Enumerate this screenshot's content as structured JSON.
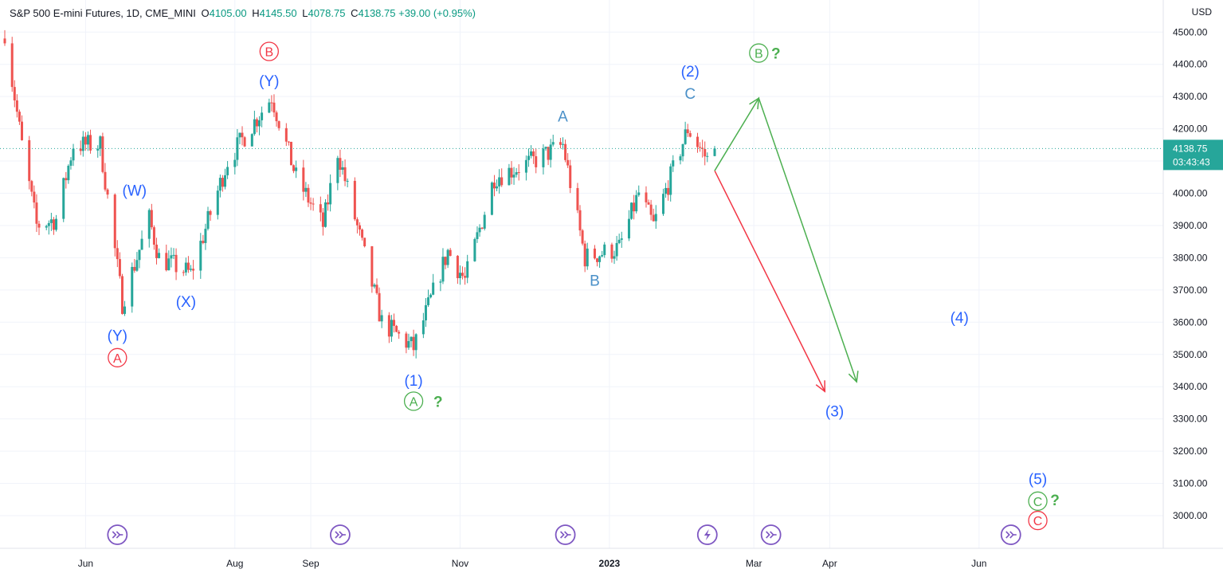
{
  "header": {
    "symbol": "S&P 500 E-mini Futures, 1D, CME_MINI",
    "o_label": "O",
    "o_value": "4105.00",
    "h_label": "H",
    "h_value": "4145.50",
    "l_label": "L",
    "l_value": "4078.75",
    "c_label": "C",
    "c_value": "4138.75",
    "change": "+39.00 (+0.95%)"
  },
  "price_unit": "USD",
  "last_price": {
    "value": 4138.75,
    "label": "4138.75",
    "countdown": "03:43:43"
  },
  "colors": {
    "up": "#26a69a",
    "down": "#ef5350",
    "wave_blue": "#2962ff",
    "wave_red": "#f23645",
    "wave_green": "#4caf50",
    "event": "#7e57c2"
  },
  "chart_data": {
    "type": "candlestick",
    "title": "S&P 500 E-mini Futures, 1D, CME_MINI",
    "ylim": [
      2900,
      4550
    ],
    "y_ticks": [
      3000,
      3100,
      3200,
      3300,
      3400,
      3500,
      3600,
      3700,
      3800,
      3900,
      4000,
      4100,
      4200,
      4300,
      4400,
      4500
    ],
    "y_tick_labels": [
      "3000.00",
      "3100.00",
      "3200.00",
      "3300.00",
      "3400.00",
      "3500.00",
      "3600.00",
      "3700.00",
      "3800.00",
      "3900.00",
      "4000.00",
      "4100.00",
      "4200.00",
      "4300.00",
      "4400.00",
      "4500.00"
    ],
    "x_range": [
      "2022-04-29",
      "2023-07-15"
    ],
    "x_labels": [
      {
        "date": "2022-06-01",
        "label": "Jun"
      },
      {
        "date": "2022-08-01",
        "label": "Aug"
      },
      {
        "date": "2022-09-01",
        "label": "Sep"
      },
      {
        "date": "2022-11-01",
        "label": "Nov"
      },
      {
        "date": "2023-01-01",
        "label": "2023"
      },
      {
        "date": "2023-03-01",
        "label": "Mar"
      },
      {
        "date": "2023-04-01",
        "label": "Apr"
      },
      {
        "date": "2023-06-01",
        "label": "Jun"
      }
    ],
    "price_path": [
      [
        "2022-04-29",
        4500
      ],
      [
        "2022-05-06",
        4150
      ],
      [
        "2022-05-12",
        3900
      ],
      [
        "2022-05-20",
        3920
      ],
      [
        "2022-05-27",
        4150
      ],
      [
        "2022-06-07",
        4150
      ],
      [
        "2022-06-16",
        3660
      ],
      [
        "2022-06-27",
        3920
      ],
      [
        "2022-07-01",
        3800
      ],
      [
        "2022-07-14",
        3750
      ],
      [
        "2022-07-29",
        4100
      ],
      [
        "2022-08-16",
        4300
      ],
      [
        "2022-08-26",
        4050
      ],
      [
        "2022-09-06",
        3900
      ],
      [
        "2022-09-12",
        4130
      ],
      [
        "2022-09-30",
        3600
      ],
      [
        "2022-10-13",
        3520
      ],
      [
        "2022-10-27",
        3820
      ],
      [
        "2022-11-03",
        3730
      ],
      [
        "2022-11-15",
        4050
      ],
      [
        "2022-12-01",
        4100
      ],
      [
        "2022-12-13",
        4150
      ],
      [
        "2022-12-22",
        3800
      ],
      [
        "2023-01-05",
        3830
      ],
      [
        "2023-01-13",
        4000
      ],
      [
        "2023-01-19",
        3900
      ],
      [
        "2023-02-02",
        4200
      ],
      [
        "2023-02-10",
        4105
      ],
      [
        "2023-02-13",
        4138.75
      ]
    ],
    "projections": [
      {
        "name": "bearish",
        "color": "#f23645",
        "points": [
          [
            "2023-02-13",
            4070
          ],
          [
            "2023-03-30",
            3385
          ]
        ]
      },
      {
        "name": "bullish",
        "color": "#4caf50",
        "points": [
          [
            "2023-02-13",
            4070
          ],
          [
            "2023-03-03",
            4295
          ],
          [
            "2023-04-12",
            3415
          ]
        ]
      }
    ],
    "wave_labels": [
      {
        "text": "B",
        "circle": true,
        "color": "#f23645",
        "date": "2022-08-15",
        "price": 4440
      },
      {
        "text": "(Y)",
        "color": "#2962ff",
        "date": "2022-08-15",
        "price": 4350
      },
      {
        "text": "(W)",
        "color": "#2962ff",
        "date": "2022-06-21",
        "price": 4010
      },
      {
        "text": "(X)",
        "color": "#2962ff",
        "date": "2022-07-12",
        "price": 3665
      },
      {
        "text": "(Y)",
        "color": "#2962ff",
        "date": "2022-06-14",
        "price": 3560
      },
      {
        "text": "A",
        "circle": true,
        "color": "#f23645",
        "date": "2022-06-14",
        "price": 3490
      },
      {
        "text": "(1)",
        "color": "#2962ff",
        "date": "2022-10-13",
        "price": 3420
      },
      {
        "text": "A",
        "circle": true,
        "color": "#4caf50",
        "date": "2022-10-13",
        "price": 3355
      },
      {
        "text": "?",
        "color": "#4caf50",
        "date": "2022-10-23",
        "price": 3355
      },
      {
        "text": "A",
        "color": "#4a90c8",
        "date": "2022-12-13",
        "price": 4240
      },
      {
        "text": "B",
        "color": "#4a90c8",
        "date": "2022-12-26",
        "price": 3730
      },
      {
        "text": "(2)",
        "color": "#2962ff",
        "date": "2023-02-03",
        "price": 4380
      },
      {
        "text": "C",
        "color": "#4a90c8",
        "date": "2023-02-03",
        "price": 4310
      },
      {
        "text": "B",
        "circle": true,
        "color": "#4caf50",
        "date": "2023-03-03",
        "price": 4435
      },
      {
        "text": "?",
        "color": "#4caf50",
        "date": "2023-03-10",
        "price": 4435
      },
      {
        "text": "(3)",
        "color": "#2962ff",
        "date": "2023-04-03",
        "price": 3325
      },
      {
        "text": "(4)",
        "color": "#2962ff",
        "date": "2023-05-24",
        "price": 3615
      },
      {
        "text": "(5)",
        "color": "#2962ff",
        "date": "2023-06-25",
        "price": 3115
      },
      {
        "text": "C",
        "circle": true,
        "color": "#4caf50",
        "date": "2023-06-25",
        "price": 3045
      },
      {
        "text": "?",
        "color": "#4caf50",
        "date": "2023-07-02",
        "price": 3050
      },
      {
        "text": "C",
        "circle": true,
        "color": "#f23645",
        "date": "2023-06-25",
        "price": 2985
      }
    ],
    "event_markers": [
      {
        "date": "2022-06-14",
        "icon": "fast-forward-icon"
      },
      {
        "date": "2022-09-13",
        "icon": "fast-forward-icon"
      },
      {
        "date": "2022-12-14",
        "icon": "fast-forward-icon"
      },
      {
        "date": "2023-02-10",
        "icon": "lightning-icon"
      },
      {
        "date": "2023-03-08",
        "icon": "fast-forward-icon"
      },
      {
        "date": "2023-06-14",
        "icon": "fast-forward-icon"
      }
    ]
  }
}
